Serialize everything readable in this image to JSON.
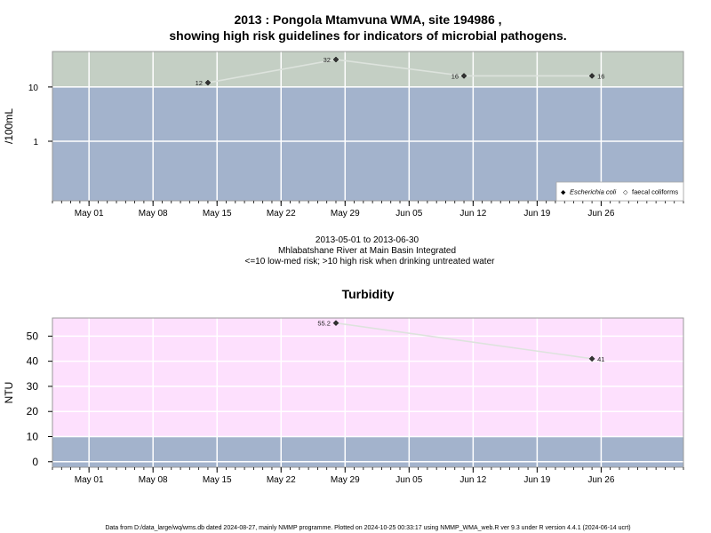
{
  "colors": {
    "high_risk_band": "#c4cfc4",
    "low_risk_band": "#a3b3cc",
    "turbidity_band": "#fde0fd",
    "grid": "#ffffff",
    "line": "#dde3dd",
    "marker": "#333333",
    "frame": "#999999"
  },
  "chart_data": [
    {
      "type": "line",
      "title": "2013 : Pongola Mtamvuna WMA, site 194986 ,",
      "subtitle": "showing high risk guidelines for indicators of microbial pathogens.",
      "ylabel": "/100mL",
      "xlabel": "",
      "y_scale": "log",
      "ylim": [
        0.08,
        45
      ],
      "xlim": [
        "2013-04-27",
        "2013-07-05"
      ],
      "x_ticks": [
        "2013-05-01",
        "2013-05-08",
        "2013-05-15",
        "2013-05-22",
        "2013-05-29",
        "2013-06-05",
        "2013-06-12",
        "2013-06-19",
        "2013-06-26"
      ],
      "x_tick_labels": [
        "May 01",
        "May 08",
        "May 15",
        "May 22",
        "May 29",
        "Jun 05",
        "Jun 12",
        "Jun 19",
        "Jun 26"
      ],
      "y_ticks": [
        1,
        10
      ],
      "y_tick_labels": [
        "1",
        "10"
      ],
      "grid": true,
      "threshold": 10,
      "legend_position": "bottom-right",
      "legend": [
        {
          "symbol": "◆",
          "label": "Escherichia coli",
          "italic": true
        },
        {
          "symbol": "◇",
          "label": "faecal coliforms",
          "italic": false
        }
      ],
      "series": [
        {
          "name": "Escherichia coli",
          "x": [
            "2013-05-14",
            "2013-05-28",
            "2013-06-11",
            "2013-06-25"
          ],
          "values": [
            12,
            32,
            16,
            16
          ],
          "labels": [
            "12",
            "32",
            "16",
            "16"
          ]
        }
      ],
      "caption_lines": [
        "2013-05-01 to 2013-06-30",
        "Mhlabatshane River at Main Basin Integrated",
        "<=10 low-med risk; >10 high risk when drinking untreated water"
      ]
    },
    {
      "type": "line",
      "title": "Turbidity",
      "ylabel": "NTU",
      "xlabel": "",
      "y_scale": "linear",
      "ylim": [
        -2.2,
        57.2
      ],
      "xlim": [
        "2013-04-27",
        "2013-07-05"
      ],
      "x_ticks": [
        "2013-05-01",
        "2013-05-08",
        "2013-05-15",
        "2013-05-22",
        "2013-05-29",
        "2013-06-05",
        "2013-06-12",
        "2013-06-19",
        "2013-06-26"
      ],
      "x_tick_labels": [
        "May 01",
        "May 08",
        "May 15",
        "May 22",
        "May 29",
        "Jun 05",
        "Jun 12",
        "Jun 19",
        "Jun 26"
      ],
      "y_ticks": [
        0,
        10,
        20,
        30,
        40,
        50
      ],
      "y_tick_labels": [
        "0",
        "10",
        "20",
        "30",
        "40",
        "50"
      ],
      "grid": true,
      "threshold": 10,
      "series": [
        {
          "name": "",
          "x": [
            "2013-05-28",
            "2013-06-25"
          ],
          "values": [
            55.2,
            41
          ],
          "labels": [
            "55.2",
            "41"
          ]
        }
      ]
    }
  ],
  "footer": "Data from D:/data_large/wq/wms.db dated 2024-08-27, mainly NMMP programme. Plotted on 2024-10-25 00:33:17 using NMMP_WMA_web.R ver 9.3 under R version 4.4.1 (2024-06-14 ucrt)"
}
